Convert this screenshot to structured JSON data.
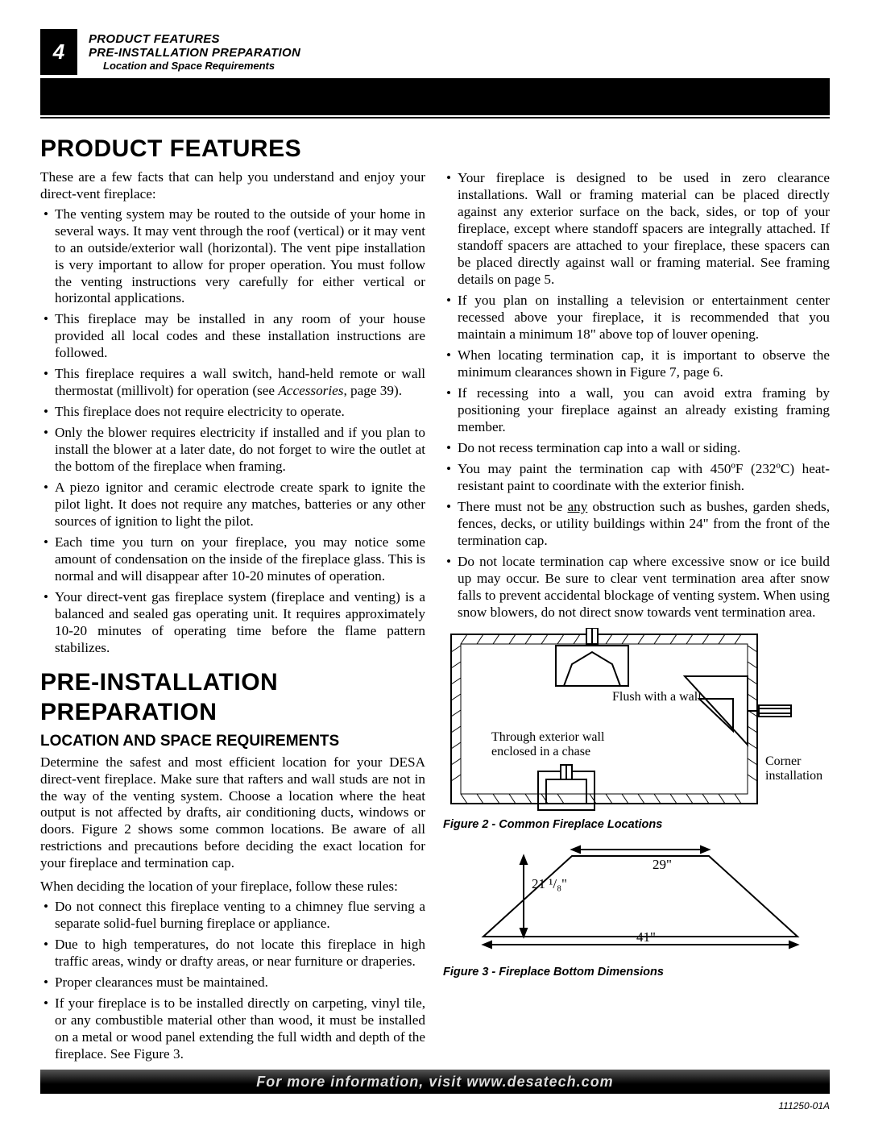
{
  "page_number": "4",
  "header": {
    "line1": "PRODUCT FEATURES",
    "line2": "PRE-INSTALLATION PREPARATION",
    "line3": "Location and Space Requirements"
  },
  "section1": {
    "title": "PRODUCT FEATURES",
    "intro": "These are a few facts that can help you understand and enjoy your direct-vent fireplace:",
    "bullets_left": [
      "The venting system may be routed to the outside of your home in several ways. It may vent through the roof (vertical) or it may vent to an outside/exterior wall (horizontal). The vent pipe installation is very important to allow for proper operation. You must follow the venting instructions very carefully for either vertical or horizontal applications.",
      "This fireplace may be installed in any room of your house provided all local codes and these installation instructions are followed.",
      "This fireplace requires a wall switch, hand-held remote or wall thermostat (millivolt) for operation (see <span class=\"italic\">Accessories</span>, page 39).",
      "This fireplace does not require electricity to operate.",
      "Only the blower requires electricity if installed and if you plan to install the blower at a later date, do not forget to wire the outlet at the bottom of the fireplace when framing.",
      "A piezo ignitor and ceramic electrode create spark to ignite the pilot light. It does not require any matches, batteries or any other sources of ignition to light the pilot.",
      "Each time you turn on your fireplace, you may notice some amount of condensation on the inside of the fireplace glass. This is normal and will disappear after 10-20 minutes of operation.",
      "Your direct-vent gas fireplace system (fireplace and venting) is a balanced and sealed gas operating unit. It requires approximately 10-20 minutes of operating time before the flame pattern stabilizes."
    ]
  },
  "section2": {
    "title": "PRE-INSTALLATION PREPARATION",
    "subtitle": "LOCATION AND SPACE REQUIREMENTS",
    "para1": "Determine the safest and most efficient location for your DESA direct-vent fireplace. Make sure that rafters and wall studs are not in the way of the venting system. Choose a location where the heat output is not affected by drafts, air conditioning ducts, windows or doors. Figure 2 shows some common locations. Be aware of all restrictions and precautions before deciding the exact location for your fireplace and termination cap.",
    "para2": "When deciding the location of your fireplace, follow these rules:",
    "bullets_left": [
      "Do not connect this fireplace venting to a chimney flue serving a separate solid-fuel burning fireplace or appliance.",
      "Due to high temperatures, do not locate this fireplace in high traffic areas, windy or drafty areas, or near furniture or draperies.",
      "Proper clearances must be maintained.",
      "If your fireplace is to be installed directly on carpeting, vinyl tile, or any combustible material other than wood, it must be installed on a metal or wood panel extending the full width and depth of the fireplace. See Figure 3."
    ],
    "bullets_right": [
      "Your fireplace is designed to be used in zero clearance installations. Wall or framing material can be placed directly against any exterior surface on the back, sides, or top of your fireplace, except where standoff spacers are integrally attached. If standoff spacers are attached to your fireplace, these spacers can be placed directly against wall or framing material. See framing details on page 5.",
      "If you plan on installing a television or entertainment center recessed above your fireplace, it is recommended that you maintain a minimum 18\" above top of louver opening.",
      "When locating termination cap, it is important to observe the minimum clearances shown in Figure 7, page 6.",
      "If recessing into a wall, you can avoid extra framing by positioning your fireplace against an already existing framing member.",
      "Do not recess termination cap into a wall or siding.",
      "You may paint the termination cap with 450ºF (232ºC) heat-resistant paint to coordinate with the exterior finish.",
      "There must not be <span class=\"underline\">any</span> obstruction such as bushes, garden sheds, fences, decks, or utility buildings within 24\" from the front of the termination cap.",
      "Do not locate termination cap where excessive snow or ice build up may occur. Be sure to clear vent termination area after snow falls to prevent accidental blockage of venting system. When using snow blowers, do not direct snow towards vent termination area."
    ]
  },
  "figure2": {
    "caption": "Figure 2 - Common Fireplace Locations",
    "labels": {
      "flush": "Flush with a wall",
      "through1": "Through exterior wall",
      "through2": "enclosed in a chase",
      "corner1": "Corner",
      "corner2": "installation"
    }
  },
  "figure3": {
    "caption": "Figure 3 - Fireplace Bottom Dimensions",
    "dims": {
      "top": "29\"",
      "height": "21 ¹/₈\"",
      "bottom": "41\""
    }
  },
  "footer": "For more information, visit www.desatech.com",
  "docnum": "111250-01A",
  "colors": {
    "black": "#000000",
    "white": "#ffffff"
  }
}
